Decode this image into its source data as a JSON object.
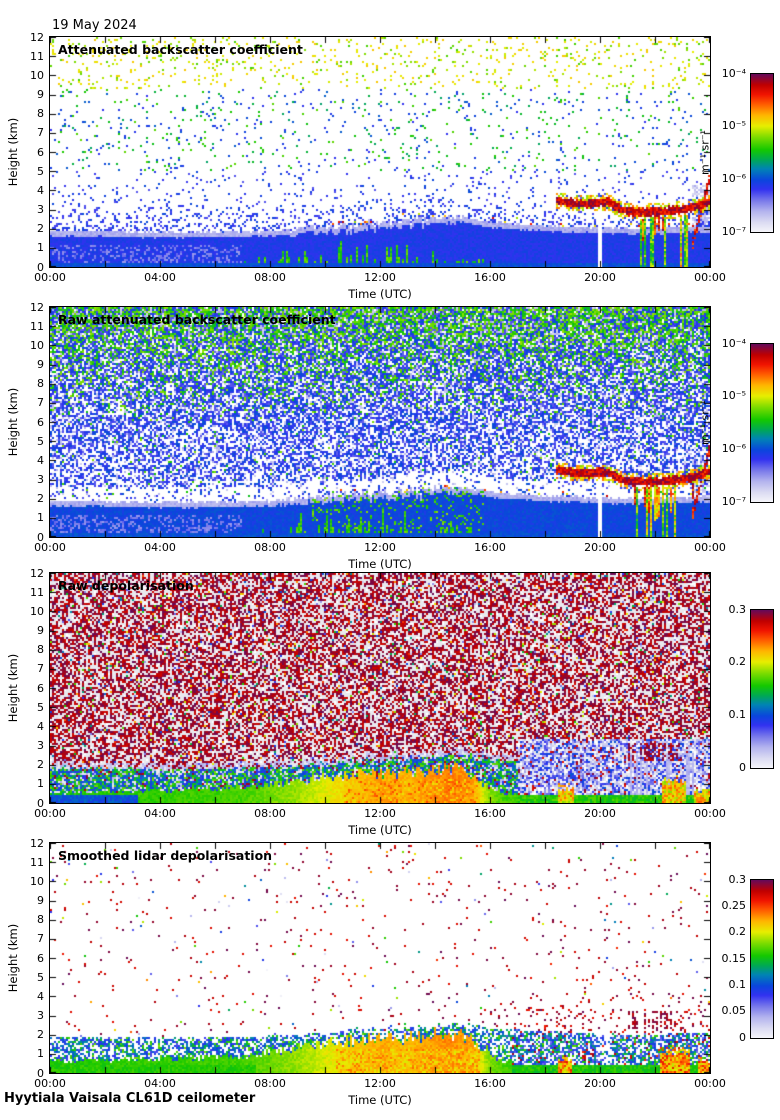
{
  "page": {
    "date_label": "19 May 2024",
    "footer": "Hyytiala Vaisala CL61D ceilometer"
  },
  "axes": {
    "xlabel": "Time (UTC)",
    "ylabel": "Height (km)",
    "xticks": [
      "00:00",
      "04:00",
      "08:00",
      "12:00",
      "16:00",
      "20:00",
      "00:00"
    ],
    "yticks": [
      0,
      1,
      2,
      3,
      4,
      5,
      6,
      7,
      8,
      9,
      10,
      11,
      12
    ],
    "x_range_hours": [
      0,
      24
    ],
    "y_range_km": [
      0,
      12
    ]
  },
  "colormap_stops": [
    [
      0.0,
      "#f5f5fa"
    ],
    [
      0.06,
      "#dcdcf2"
    ],
    [
      0.13,
      "#b4b4ee"
    ],
    [
      0.2,
      "#7878ea"
    ],
    [
      0.27,
      "#3232f0"
    ],
    [
      0.33,
      "#0a46dc"
    ],
    [
      0.4,
      "#0084b4"
    ],
    [
      0.46,
      "#00aa50"
    ],
    [
      0.52,
      "#14c800"
    ],
    [
      0.6,
      "#7ddc00"
    ],
    [
      0.67,
      "#e6ee00"
    ],
    [
      0.74,
      "#ffb400"
    ],
    [
      0.81,
      "#ff5a00"
    ],
    [
      0.87,
      "#f01400"
    ],
    [
      0.93,
      "#c00000"
    ],
    [
      1.0,
      "#640a5a"
    ]
  ],
  "chart_data": [
    {
      "type": "heatmap",
      "title": "Attenuated backscatter coefficient",
      "xlabel": "Time (UTC)",
      "ylabel": "Height (km)",
      "x_range_hours": [
        0,
        24
      ],
      "y_range_km": [
        0,
        12
      ],
      "color_scale": {
        "type": "log",
        "min": "1e-7",
        "max": "1e-4",
        "tick_labels": [
          "10⁻⁴",
          "10⁻⁵",
          "10⁻⁶",
          "10⁻⁷"
        ],
        "unit": "m⁻¹ sr⁻¹"
      },
      "features": {
        "mode": "sparse",
        "description": "Mostly clear (white) free troposphere with sparse solar-noise speckles (yellow/green aloft, blue near 2-5 km); solid blue aerosol boundary layer 0-2 km rising to ~2.6 km by 15:00 with light cap; green convective streaks 07:00-16:00; strong red cloud layer 2.8-3.5 km from 18:30-24:00 with precipitation streaks 21:00-23:30 and clear gap near 20:00.",
        "bl_top_km": [
          [
            0,
            1.9
          ],
          [
            4,
            1.82
          ],
          [
            7,
            1.85
          ],
          [
            9,
            2.0
          ],
          [
            12,
            2.3
          ],
          [
            14,
            2.5
          ],
          [
            15,
            2.6
          ],
          [
            16,
            2.35
          ],
          [
            18,
            2.15
          ],
          [
            21,
            2.0
          ],
          [
            24,
            2.1
          ]
        ],
        "green_streaks_t": [
          7,
          15.8
        ],
        "cloud": {
          "t_start": 18.4,
          "center_km": [
            [
              18.4,
              3.5
            ],
            [
              19.0,
              3.35
            ],
            [
              19.6,
              3.3
            ],
            [
              20.3,
              3.4
            ],
            [
              20.8,
              2.95
            ],
            [
              21.5,
              2.85
            ],
            [
              22.3,
              2.9
            ],
            [
              23.0,
              3.0
            ],
            [
              23.5,
              3.15
            ],
            [
              24,
              3.4
            ]
          ],
          "gap_t": 20.0,
          "precip_t": [
            21.2,
            23.4
          ],
          "right_haze_t": 23.35
        }
      }
    },
    {
      "type": "heatmap",
      "title": "Raw attenuated backscatter coefficient",
      "xlabel": "Time (UTC)",
      "ylabel": "Height (km)",
      "x_range_hours": [
        0,
        24
      ],
      "y_range_km": [
        0,
        12
      ],
      "color_scale": {
        "type": "log",
        "min": "1e-7",
        "max": "1e-4",
        "tick_labels": [
          "10⁻⁴",
          "10⁻⁵",
          "10⁻⁶",
          "10⁻⁷"
        ],
        "unit": "m⁻¹ sr⁻¹"
      },
      "features": {
        "mode": "raw",
        "description": "Dense blue/green instrument noise filling the free troposphere (green fraction and density increase with height); whitish low-signal band just above the boundary layer ~2.0-2.6 km; solid blue boundary layer below 2 km with mid-day green streaks; same evening cloud, precipitation and 20:00 gap as panel 1; red feature rising to ~4.5 km at far right.",
        "bl_top_km": [
          [
            0,
            1.9
          ],
          [
            4,
            1.82
          ],
          [
            7,
            1.85
          ],
          [
            9,
            2.0
          ],
          [
            12,
            2.3
          ],
          [
            14,
            2.5
          ],
          [
            15,
            2.6
          ],
          [
            16,
            2.35
          ],
          [
            18,
            2.15
          ],
          [
            21,
            2.0
          ],
          [
            24,
            2.1
          ]
        ],
        "clear_band_km": [
          2.0,
          2.6
        ],
        "green_streaks_t": [
          7,
          15.8
        ],
        "cloud": {
          "t_start": 18.4,
          "center_km": [
            [
              18.4,
              3.5
            ],
            [
              19.0,
              3.35
            ],
            [
              19.6,
              3.3
            ],
            [
              20.3,
              3.4
            ],
            [
              20.8,
              2.95
            ],
            [
              21.5,
              2.85
            ],
            [
              22.3,
              2.9
            ],
            [
              23.0,
              3.0
            ],
            [
              23.5,
              3.15
            ],
            [
              24,
              3.4
            ]
          ],
          "gap_t": 20.0,
          "precip_t": [
            21.2,
            23.4
          ],
          "right_haze_t": 23.35
        }
      }
    },
    {
      "type": "heatmap",
      "title": "Raw depolarisation",
      "xlabel": "Time (UTC)",
      "ylabel": "Height (km)",
      "x_range_hours": [
        0,
        24
      ],
      "y_range_km": [
        0,
        12
      ],
      "color_scale": {
        "type": "linear",
        "min": 0,
        "max": 0.3,
        "tick_labels": [
          "0.3",
          "0.2",
          "0.1",
          "0"
        ],
        "unit": ""
      },
      "features": {
        "mode": "raw_depol",
        "description": "Dense maroon/purple noise (depolarisation ~0.3) above ~1.8 km over light-gray background; blue-green speckle inside the boundary layer; solid green low-depolarisation band near the surface turning yellow-orange 09:00-15:30; evening: blue/lavender structured zone below 3 km with maroon blobs 2.2-3.1 km around 21:00-23:00 and orange surface spots near 18:45 and 22:30.",
        "bl_top_km": [
          [
            0,
            1.9
          ],
          [
            4,
            1.82
          ],
          [
            7,
            1.85
          ],
          [
            9,
            2.0
          ],
          [
            12,
            2.3
          ],
          [
            14,
            2.5
          ],
          [
            15,
            2.6
          ],
          [
            16,
            2.35
          ],
          [
            18,
            2.15
          ],
          [
            21,
            2.0
          ],
          [
            24,
            2.1
          ]
        ],
        "warm_intensity": [
          [
            0,
            0.0
          ],
          [
            3,
            0.05
          ],
          [
            7,
            0.12
          ],
          [
            9,
            0.35
          ],
          [
            11,
            0.7
          ],
          [
            12,
            0.85
          ],
          [
            13,
            0.78
          ],
          [
            14.5,
            0.95
          ],
          [
            15.4,
            0.85
          ],
          [
            15.9,
            0.35
          ],
          [
            16.5,
            0.12
          ],
          [
            24,
            0.1
          ]
        ],
        "warm_top_km": [
          [
            0,
            0.5
          ],
          [
            7,
            0.75
          ],
          [
            9,
            1.1
          ],
          [
            11,
            1.5
          ],
          [
            13,
            1.6
          ],
          [
            14.8,
            1.85
          ],
          [
            15.8,
            1.0
          ],
          [
            16.5,
            0.5
          ],
          [
            24,
            0.5
          ]
        ],
        "evening": {
          "t_start": 17.0,
          "blob_t": [
            21.0,
            22.9
          ],
          "blob_h_km": [
            2.2,
            3.15
          ],
          "streak_t": [
            20.6,
            23.5
          ],
          "orange_spots": [
            [
              18.45,
              19.05,
              0.9
            ],
            [
              22.25,
              23.1,
              1.3
            ],
            [
              23.45,
              24,
              0.7
            ]
          ]
        }
      }
    },
    {
      "type": "heatmap",
      "title": "Smoothed lidar depolarisation",
      "xlabel": "Time (UTC)",
      "ylabel": "Height (km)",
      "x_range_hours": [
        0,
        24
      ],
      "y_range_km": [
        0,
        12
      ],
      "color_scale": {
        "type": "linear",
        "min": 0,
        "max": 0.3,
        "tick_labels": [
          "0.3",
          "0.25",
          "0.2",
          "0.15",
          "0.1",
          "0.05",
          "0"
        ],
        "unit": ""
      },
      "features": {
        "mode": "smoothed_depol",
        "description": "White background with sparse purple residual-noise dots; boundary-layer band 0-2 km: green near surface, yellow-orange core 10:00-15:30, blue-green speckle after 16:00; maroon high-depolarisation blobs 2.3-3.2 km around 21:00-23:00; orange surface spots near 18:45, 22:30 and after 23:30.",
        "bl_top_km": [
          [
            0,
            1.9
          ],
          [
            4,
            1.82
          ],
          [
            7,
            1.85
          ],
          [
            9,
            2.0
          ],
          [
            12,
            2.3
          ],
          [
            14,
            2.5
          ],
          [
            15,
            2.6
          ],
          [
            16,
            2.35
          ],
          [
            18,
            2.15
          ],
          [
            21,
            2.0
          ],
          [
            24,
            2.1
          ]
        ],
        "warm_intensity": [
          [
            0,
            0.0
          ],
          [
            3,
            0.05
          ],
          [
            7,
            0.12
          ],
          [
            9,
            0.35
          ],
          [
            11,
            0.7
          ],
          [
            12,
            0.85
          ],
          [
            13,
            0.78
          ],
          [
            14.5,
            0.95
          ],
          [
            15.4,
            0.85
          ],
          [
            15.9,
            0.35
          ],
          [
            16.5,
            0.12
          ],
          [
            24,
            0.1
          ]
        ],
        "warm_top_km": [
          [
            0,
            0.5
          ],
          [
            7,
            0.75
          ],
          [
            9,
            1.1
          ],
          [
            11,
            1.5
          ],
          [
            13,
            1.6
          ],
          [
            14.8,
            1.85
          ],
          [
            15.8,
            1.0
          ],
          [
            16.5,
            0.5
          ],
          [
            24,
            0.5
          ]
        ],
        "evening": {
          "t_start": 16.8,
          "blob_t": [
            21.0,
            23.0
          ],
          "blob_h_km": [
            2.25,
            3.2
          ],
          "gap_t": [
            19.85,
            20.35
          ],
          "orange_spots": [
            [
              18.45,
              19.0,
              0.85
            ],
            [
              22.2,
              23.3,
              1.35
            ],
            [
              23.55,
              24,
              0.7
            ]
          ]
        }
      }
    }
  ]
}
